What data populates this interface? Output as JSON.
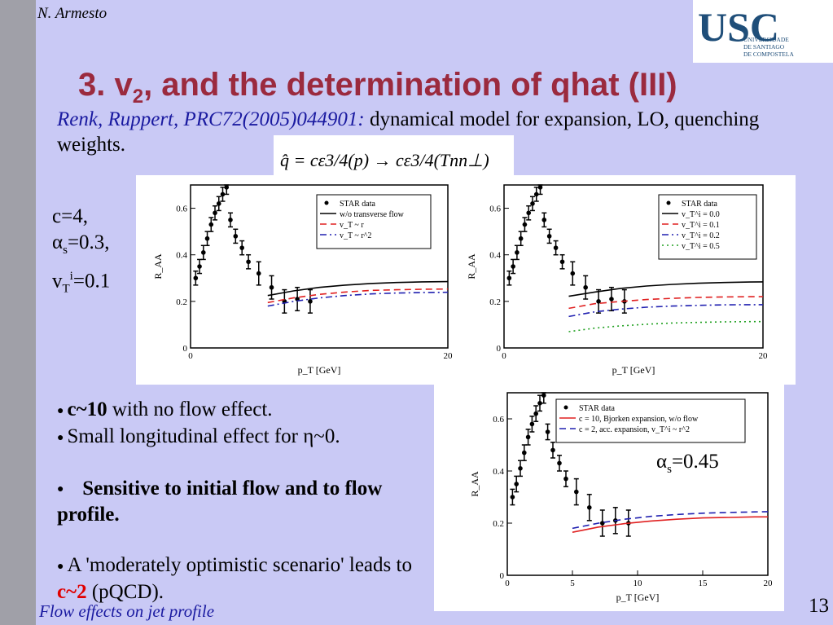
{
  "header": {
    "author": "N. Armesto",
    "logo_text": "USC",
    "logo_subtext": [
      "UNIVERSIDADE",
      "DE SANTIAGO",
      "DE COMPOSTELA"
    ],
    "title_pre": "3. v",
    "title_sub": "2",
    "title_post": ", and the determination of qhat (III)"
  },
  "reference": {
    "cite": "Renk, Ruppert, PRC72(2005)044901:",
    "description": " dynamical model for expansion, LO, quenching weights."
  },
  "formula": {
    "text": "q̂ = cε3/4(p) → cε3/4(Tnn⊥)"
  },
  "params": {
    "c": "c=4,",
    "alpha_prefix": "α",
    "alpha_sub": "s",
    "alpha_value": "=0.3,",
    "vt_prefix": "v",
    "vt_sub": "T",
    "vt_sup": "i",
    "vt_value": "=0.1"
  },
  "bullets": {
    "b1_bold": "c~10",
    "b1_rest": " with no flow effect.",
    "b2": "Small longitudinal effect for η~0.",
    "b3_bold": "Sensitive to initial flow and to flow profile.",
    "b4_pre": "A 'moderately optimistic scenario' leads to ",
    "b4_red": "c~2",
    "b4_post": " (pQCD)."
  },
  "alpha_note": {
    "prefix": "α",
    "sub": "s",
    "value": "=0.45"
  },
  "footer": {
    "text": "Flow effects on jet profile",
    "page": "13"
  },
  "colors": {
    "background": "#c9c9f5",
    "title": "#9b2a3e",
    "citation": "#1a1aa0",
    "logo_blue": "#1f4e79",
    "emphasis_red": "#e00000"
  },
  "chart_data": [
    {
      "type": "line",
      "ylabel": "R_AA",
      "xlabel": "p_T [GeV]",
      "xlim": [
        0,
        20
      ],
      "ylim": [
        0,
        0.7
      ],
      "xticks": [
        "0",
        "20"
      ],
      "yticks": [
        "0",
        "0.2",
        "0.4",
        "0.6"
      ],
      "legend_position": "top-right",
      "star_data": {
        "name": "STAR data",
        "x": [
          0.4,
          0.7,
          1.0,
          1.3,
          1.6,
          1.9,
          2.2,
          2.5,
          2.8,
          3.1,
          3.5,
          4.0,
          4.5,
          5.3,
          6.3,
          7.3,
          8.3,
          9.3
        ],
        "y": [
          0.3,
          0.35,
          0.41,
          0.47,
          0.53,
          0.58,
          0.62,
          0.66,
          0.69,
          0.55,
          0.48,
          0.43,
          0.37,
          0.32,
          0.26,
          0.2,
          0.21,
          0.2
        ]
      },
      "series": [
        {
          "name": "w/o transverse flow",
          "x": [
            6,
            8,
            10,
            12,
            14,
            16,
            18,
            20
          ],
          "values": [
            0.225,
            0.245,
            0.26,
            0.27,
            0.277,
            0.281,
            0.284,
            0.285
          ]
        },
        {
          "name": "v_T ~ r",
          "x": [
            6,
            8,
            10,
            12,
            14,
            16,
            18,
            20
          ],
          "values": [
            0.195,
            0.215,
            0.23,
            0.24,
            0.247,
            0.25,
            0.252,
            0.253
          ]
        },
        {
          "name": "v_T ~ r^2",
          "x": [
            6,
            8,
            10,
            12,
            14,
            16,
            18,
            20
          ],
          "values": [
            0.18,
            0.2,
            0.215,
            0.225,
            0.232,
            0.236,
            0.238,
            0.239
          ]
        }
      ]
    },
    {
      "type": "line",
      "ylabel": "R_AA",
      "xlabel": "p_T [GeV]",
      "xlim": [
        0,
        20
      ],
      "ylim": [
        0,
        0.7
      ],
      "xticks": [
        "0",
        "20"
      ],
      "yticks": [
        "0",
        "0.2",
        "0.4",
        "0.6"
      ],
      "legend_position": "top-right",
      "star_data": {
        "name": "STAR data",
        "x": [
          0.4,
          0.7,
          1.0,
          1.3,
          1.6,
          1.9,
          2.2,
          2.5,
          2.8,
          3.1,
          3.5,
          4.0,
          4.5,
          5.3,
          6.3,
          7.3,
          8.3,
          9.3
        ],
        "y": [
          0.3,
          0.35,
          0.41,
          0.47,
          0.53,
          0.58,
          0.62,
          0.66,
          0.69,
          0.55,
          0.48,
          0.43,
          0.37,
          0.32,
          0.26,
          0.2,
          0.21,
          0.2
        ]
      },
      "series": [
        {
          "name": "v_T^i = 0.0",
          "x": [
            5,
            7,
            9,
            11,
            13,
            15,
            17,
            19,
            20
          ],
          "values": [
            0.222,
            0.24,
            0.256,
            0.266,
            0.273,
            0.278,
            0.281,
            0.283,
            0.284
          ]
        },
        {
          "name": "v_T^i = 0.1",
          "x": [
            5,
            7,
            9,
            11,
            13,
            15,
            17,
            19,
            20
          ],
          "values": [
            0.17,
            0.19,
            0.2,
            0.208,
            0.213,
            0.217,
            0.219,
            0.22,
            0.22
          ]
        },
        {
          "name": "v_T^i = 0.2",
          "x": [
            5,
            7,
            9,
            11,
            13,
            15,
            17,
            19,
            20
          ],
          "values": [
            0.135,
            0.155,
            0.167,
            0.175,
            0.18,
            0.183,
            0.185,
            0.186,
            0.186
          ]
        },
        {
          "name": "v_T^i = 0.5",
          "x": [
            5,
            7,
            9,
            11,
            13,
            15,
            17,
            19,
            20
          ],
          "values": [
            0.07,
            0.085,
            0.095,
            0.102,
            0.107,
            0.11,
            0.112,
            0.113,
            0.113
          ]
        }
      ]
    },
    {
      "type": "line",
      "ylabel": "R_AA",
      "xlabel": "p_T [GeV]",
      "xlim": [
        0,
        20
      ],
      "ylim": [
        0,
        0.7
      ],
      "xticks": [
        "0",
        "5",
        "10",
        "15",
        "20"
      ],
      "yticks": [
        "0",
        "0.2",
        "0.4",
        "0.6"
      ],
      "legend_position": "top-right",
      "star_data": {
        "name": "STAR data",
        "x": [
          0.4,
          0.7,
          1.0,
          1.3,
          1.6,
          1.9,
          2.2,
          2.5,
          2.8,
          3.1,
          3.5,
          4.0,
          4.5,
          5.3,
          6.3,
          7.3,
          8.3,
          9.3
        ],
        "y": [
          0.3,
          0.35,
          0.41,
          0.47,
          0.53,
          0.58,
          0.62,
          0.66,
          0.69,
          0.55,
          0.48,
          0.43,
          0.37,
          0.32,
          0.26,
          0.2,
          0.21,
          0.2
        ]
      },
      "series": [
        {
          "name": "c = 10, Bjorken expansion, w/o flow",
          "x": [
            5,
            7,
            9,
            11,
            13,
            15,
            17,
            19,
            20
          ],
          "values": [
            0.165,
            0.185,
            0.198,
            0.208,
            0.215,
            0.22,
            0.222,
            0.224,
            0.224
          ]
        },
        {
          "name": "c = 2, acc. expansion, v_T^i ~ r^2",
          "x": [
            5,
            7,
            9,
            11,
            13,
            15,
            17,
            19,
            20
          ],
          "values": [
            0.18,
            0.2,
            0.215,
            0.226,
            0.233,
            0.238,
            0.241,
            0.243,
            0.244
          ]
        }
      ]
    }
  ]
}
